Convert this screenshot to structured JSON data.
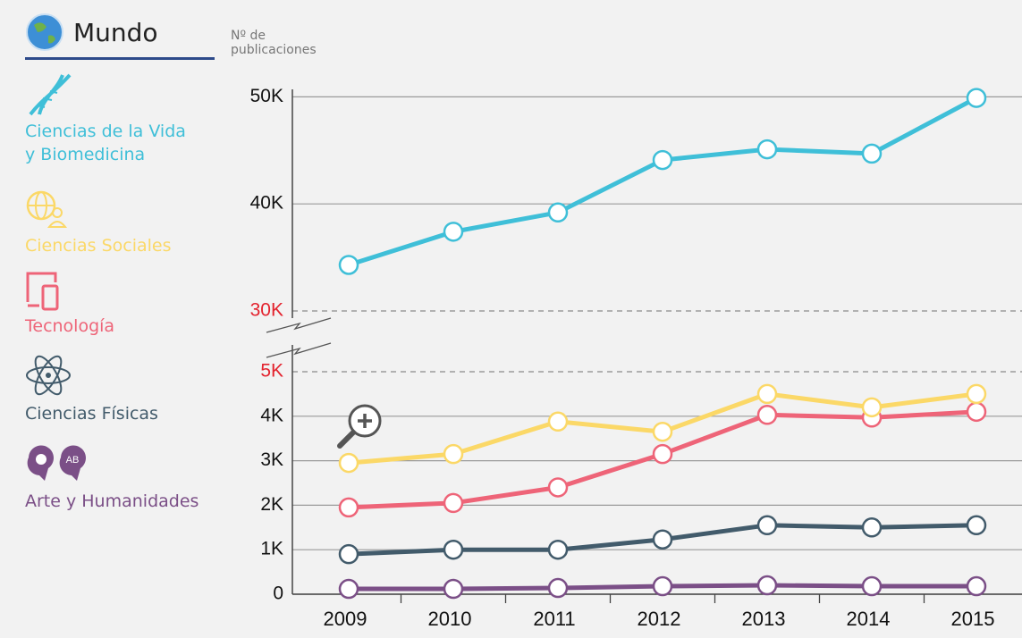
{
  "chart_data": {
    "type": "line",
    "title": "Mundo",
    "y_label": "Nº de publicaciones",
    "categories": [
      "2009",
      "2010",
      "2011",
      "2012",
      "2013",
      "2014",
      "2015"
    ],
    "series": [
      {
        "name": "Ciencias de la Vida y Biomedicina",
        "color": "#3fbfd8",
        "axis": "y2",
        "values": [
          34300,
          37400,
          39200,
          44100,
          45100,
          44700,
          49900
        ]
      },
      {
        "name": "Ciencias Sociales",
        "color": "#fbd867",
        "values": [
          2950,
          3150,
          3880,
          3650,
          4500,
          4200,
          4500
        ]
      },
      {
        "name": "Tecnología",
        "color": "#ee6478",
        "values": [
          1950,
          2050,
          2400,
          3150,
          4030,
          3970,
          4100
        ]
      },
      {
        "name": "Ciencias Físicas",
        "color": "#425b6b",
        "values": [
          900,
          1000,
          1000,
          1230,
          1550,
          1500,
          1550
        ]
      },
      {
        "name": "Arte y Humanidades",
        "color": "#7b4f87",
        "values": [
          120,
          120,
          140,
          180,
          200,
          180,
          180
        ]
      }
    ],
    "ylim": [
      0,
      5000
    ],
    "yticks": [
      0,
      {
        "value": 1000,
        "label": "1K"
      },
      {
        "value": 2000,
        "label": "2K"
      },
      {
        "value": 3000,
        "label": "3K"
      },
      {
        "value": 4000,
        "label": "4K"
      },
      {
        "value": 5000,
        "label": "5K"
      }
    ],
    "y2lim": [
      30000,
      50700
    ],
    "y2ticks": [
      {
        "value": 30000,
        "label": "30K"
      },
      {
        "value": 40000,
        "label": "40K"
      },
      {
        "value": 50000,
        "label": "50K"
      }
    ],
    "axis_break_color": "#e3222d",
    "grid": true
  }
}
